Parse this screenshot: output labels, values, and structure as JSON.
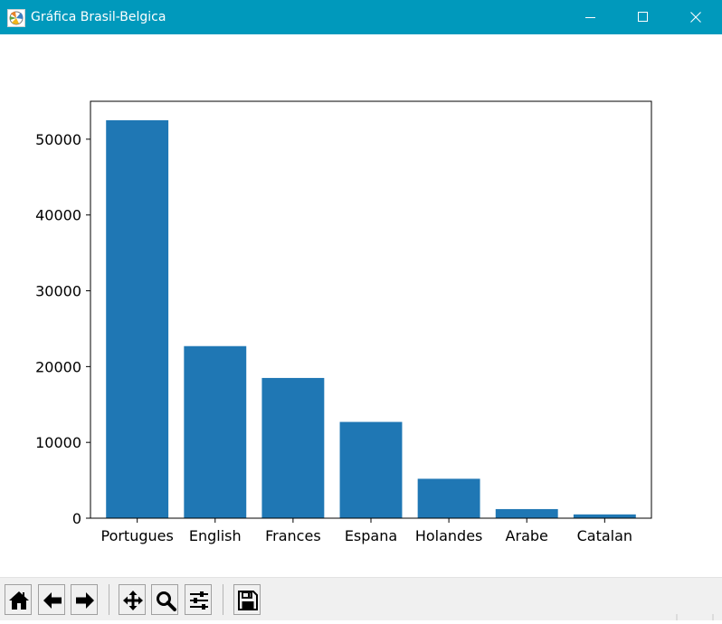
{
  "window": {
    "title": "Gráfica Brasil-Belgica",
    "icon": "matplotlib-icon",
    "controls": [
      "minimize-icon",
      "maximize-icon",
      "close-icon"
    ]
  },
  "colors": {
    "titlebar": "#0099bc",
    "bar": "#1f77b4",
    "toolbar": "#f0f0f0"
  },
  "chart_data": {
    "type": "bar",
    "categories": [
      "Portugues",
      "English",
      "Frances",
      "Espana",
      "Holandes",
      "Arabe",
      "Catalan"
    ],
    "values": [
      52500,
      22700,
      18500,
      12700,
      5200,
      1200,
      500
    ],
    "yticks": [
      0,
      10000,
      20000,
      30000,
      40000,
      50000
    ],
    "ylim": [
      0,
      55000
    ],
    "title": "",
    "xlabel": "",
    "ylabel": "",
    "grid": false,
    "legend": false
  },
  "toolbar": {
    "buttons": [
      {
        "name": "home-button",
        "icon": "home-icon"
      },
      {
        "name": "back-button",
        "icon": "arrow-left-icon"
      },
      {
        "name": "forward-button",
        "icon": "arrow-right-icon"
      },
      {
        "name": "pan-button",
        "icon": "move-icon"
      },
      {
        "name": "zoom-button",
        "icon": "magnifier-icon"
      },
      {
        "name": "configure-subplots-button",
        "icon": "sliders-icon"
      },
      {
        "name": "save-button",
        "icon": "floppy-disk-icon"
      }
    ]
  }
}
